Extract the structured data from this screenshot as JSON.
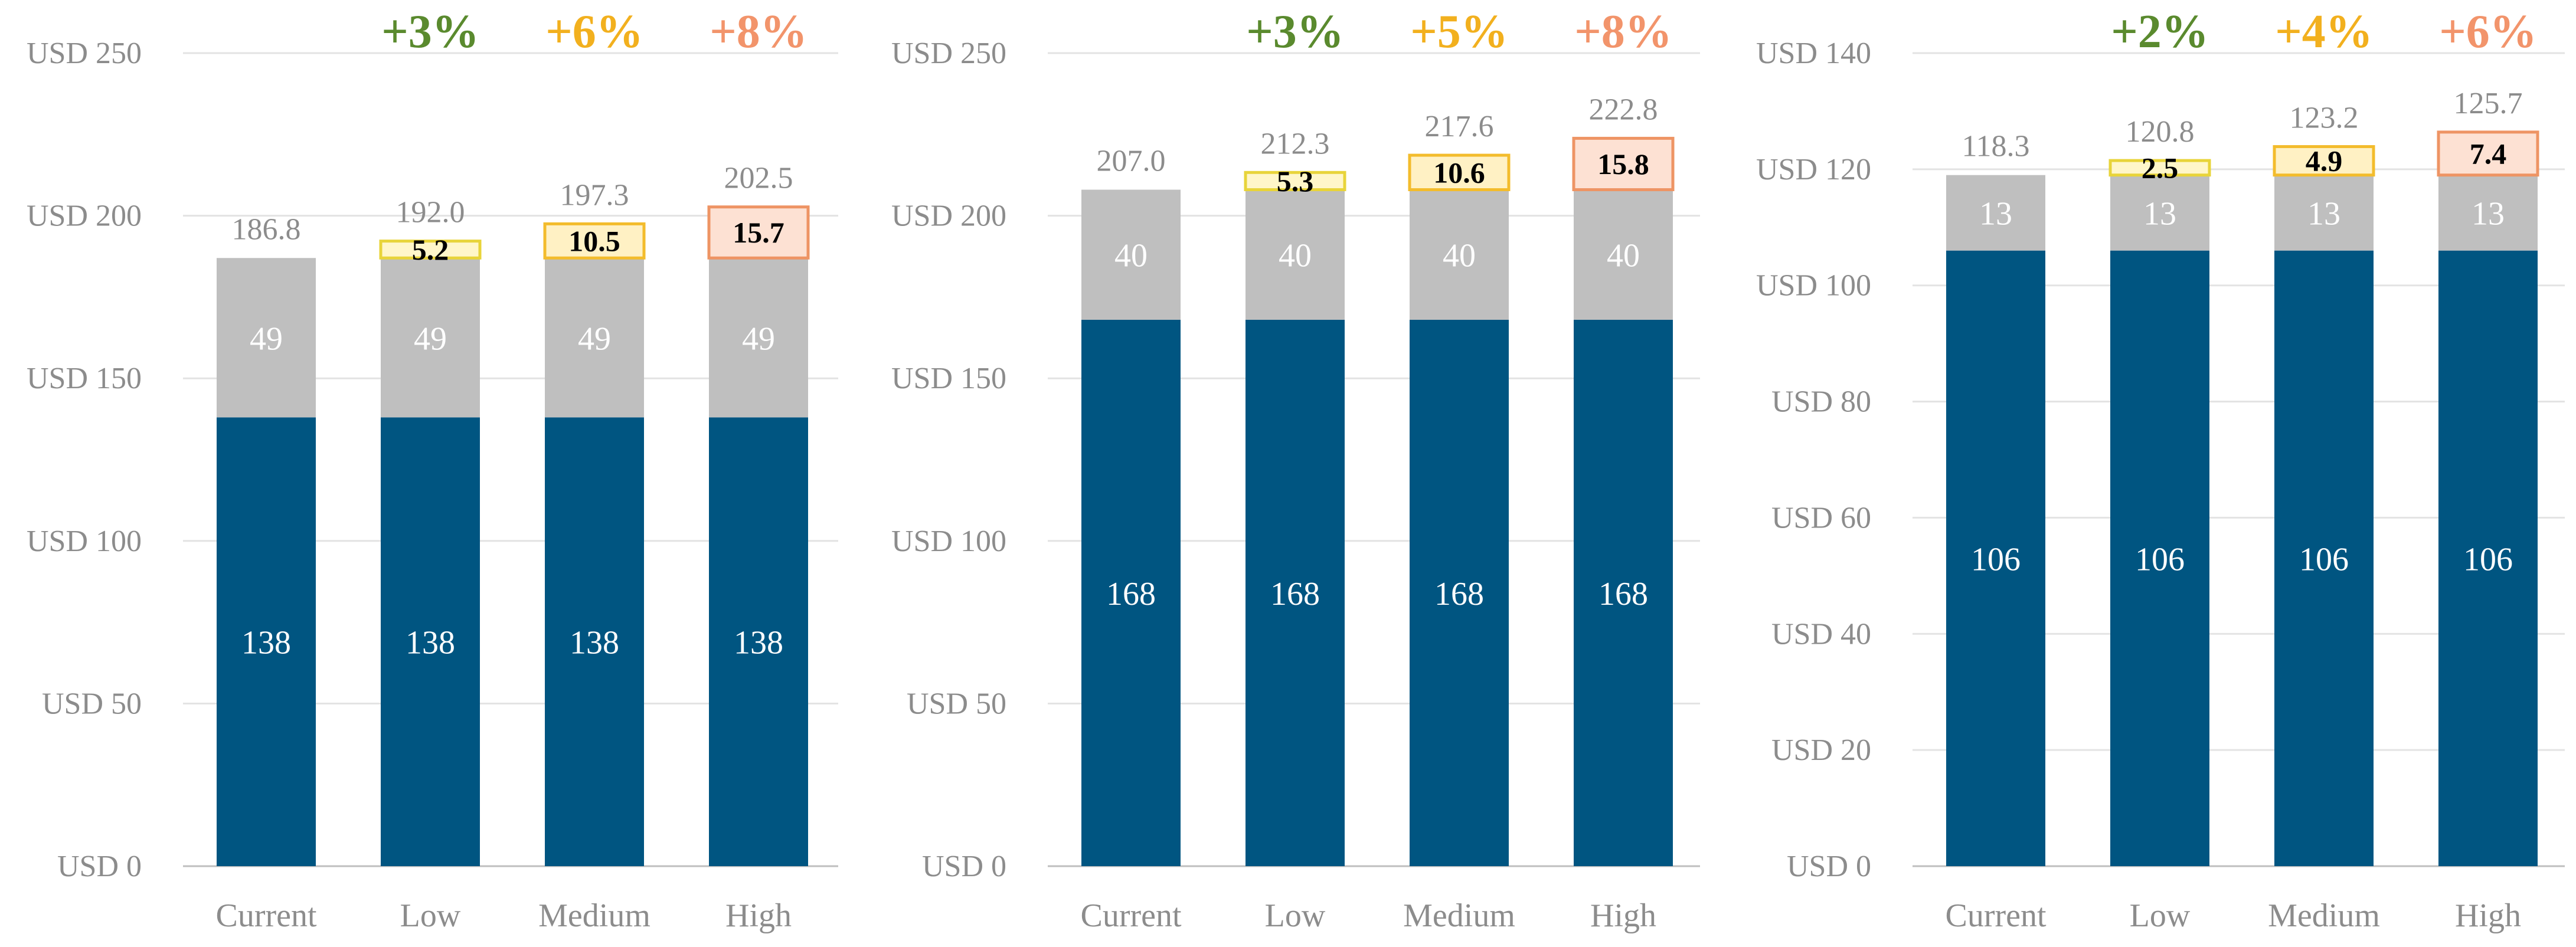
{
  "palette": {
    "base": "#005581",
    "mid": "#bfbfbf",
    "grid": "#e3e3e3",
    "axis": "#bfbfbf",
    "low_fill": "#fff6c9",
    "low_stroke": "#e8d43a",
    "low_pct": "#5a8a2e",
    "medium_fill": "#fff1c4",
    "medium_stroke": "#f3bc2c",
    "medium_pct": "#f2b01e",
    "high_fill": "#fde1d3",
    "high_stroke": "#ee9464",
    "high_pct": "#f2946b"
  },
  "chart_data": [
    {
      "type": "bar",
      "stacked": true,
      "categories": [
        "Current",
        "Low",
        "Medium",
        "High"
      ],
      "tick_labels": [
        "USD 0",
        "USD 50",
        "USD 100",
        "USD 150",
        "USD 200",
        "USD 250"
      ],
      "ylim": [
        0,
        250
      ],
      "grid": true,
      "series": [
        {
          "values": [
            138,
            138,
            138,
            138
          ],
          "labels": [
            "138",
            "138",
            "138",
            "138"
          ]
        },
        {
          "values": [
            49,
            49,
            49,
            49
          ],
          "labels": [
            "49",
            "49",
            "49",
            "49"
          ]
        },
        {
          "values": [
            0,
            5.2,
            10.5,
            15.7
          ],
          "labels": [
            "",
            "5.2",
            "10.5",
            "15.7"
          ]
        }
      ],
      "totals": [
        "186.8",
        "192.0",
        "197.3",
        "202.5"
      ],
      "increase_pct": [
        "",
        "+3%",
        "+6%",
        "+8%"
      ]
    },
    {
      "type": "bar",
      "stacked": true,
      "categories": [
        "Current",
        "Low",
        "Medium",
        "High"
      ],
      "tick_labels": [
        "USD 0",
        "USD 50",
        "USD 100",
        "USD 150",
        "USD 200",
        "USD 250"
      ],
      "ylim": [
        0,
        250
      ],
      "grid": true,
      "series": [
        {
          "values": [
            168,
            168,
            168,
            168
          ],
          "labels": [
            "168",
            "168",
            "168",
            "168"
          ]
        },
        {
          "values": [
            40,
            40,
            40,
            40
          ],
          "labels": [
            "40",
            "40",
            "40",
            "40"
          ]
        },
        {
          "values": [
            0,
            5.3,
            10.6,
            15.8
          ],
          "labels": [
            "",
            "5.3",
            "10.6",
            "15.8"
          ]
        }
      ],
      "totals": [
        "207.0",
        "212.3",
        "217.6",
        "222.8"
      ],
      "increase_pct": [
        "",
        "+3%",
        "+5%",
        "+8%"
      ]
    },
    {
      "type": "bar",
      "stacked": true,
      "categories": [
        "Current",
        "Low",
        "Medium",
        "High"
      ],
      "tick_labels": [
        "USD 0",
        "USD 20",
        "USD 40",
        "USD 60",
        "USD 80",
        "USD 100",
        "USD 120",
        "USD 140"
      ],
      "ylim": [
        0,
        140
      ],
      "grid": true,
      "series": [
        {
          "values": [
            106,
            106,
            106,
            106
          ],
          "labels": [
            "106",
            "106",
            "106",
            "106"
          ]
        },
        {
          "values": [
            13,
            13,
            13,
            13
          ],
          "labels": [
            "13",
            "13",
            "13",
            "13"
          ]
        },
        {
          "values": [
            0,
            2.5,
            4.9,
            7.4
          ],
          "labels": [
            "",
            "2.5",
            "4.9",
            "7.4"
          ]
        }
      ],
      "totals": [
        "118.3",
        "120.8",
        "123.2",
        "125.7"
      ],
      "increase_pct": [
        "",
        "+2%",
        "+4%",
        "+6%"
      ]
    }
  ]
}
